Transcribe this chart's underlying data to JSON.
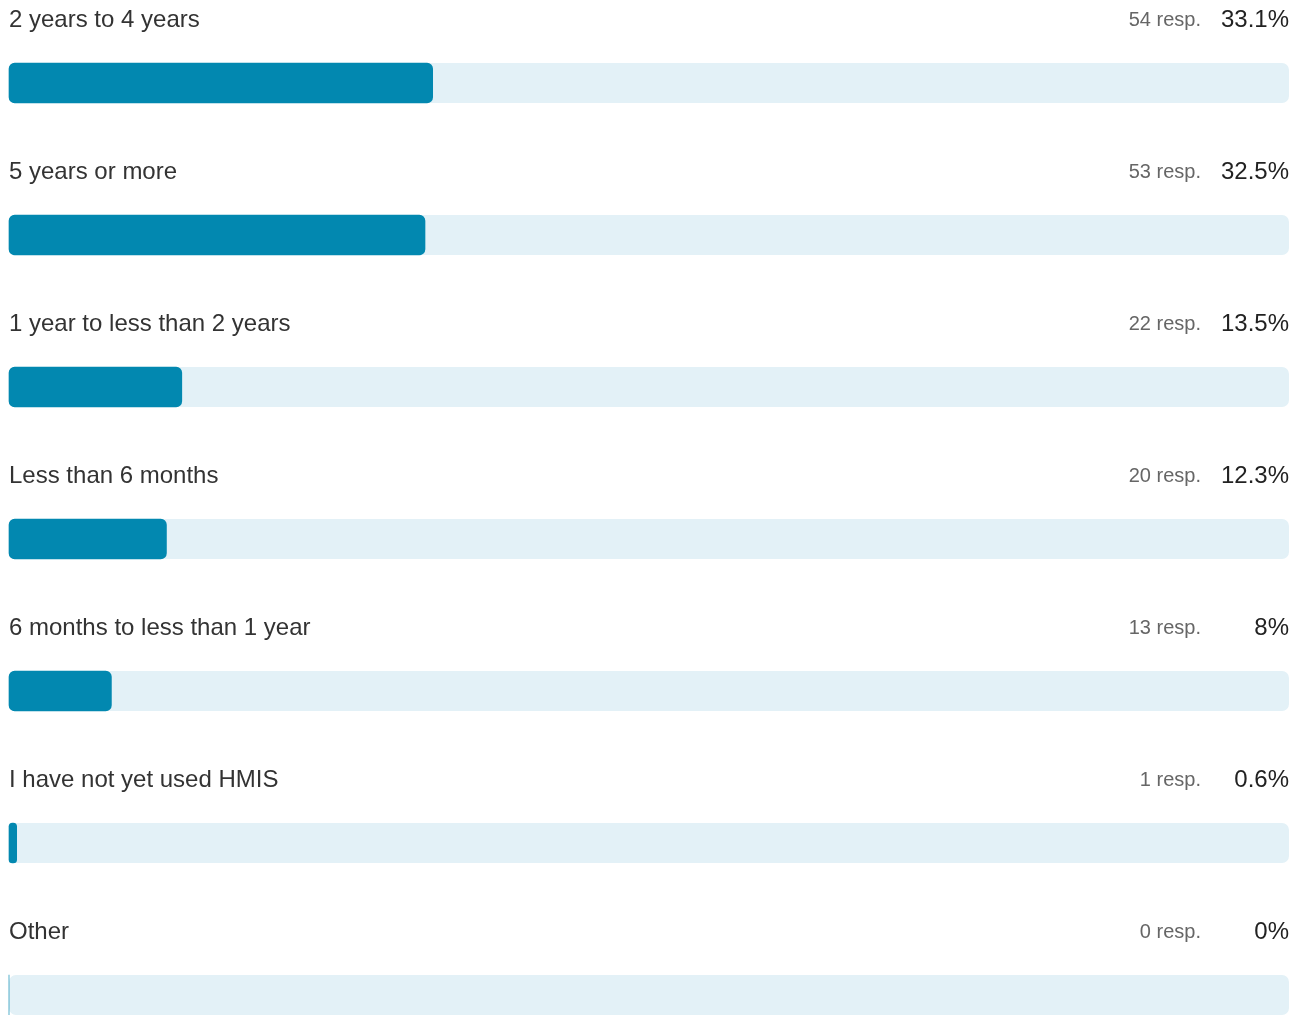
{
  "chart_data": {
    "type": "bar",
    "orientation": "horizontal",
    "categories": [
      "2 years to 4 years",
      "5 years or more",
      "1 year to less than 2 years",
      "Less than 6 months",
      "6 months to less than 1 year",
      "I have not yet used HMIS",
      "Other"
    ],
    "values": [
      33.1,
      32.5,
      13.5,
      12.3,
      8,
      0.6,
      0
    ],
    "color": "#0288b0",
    "xlim": [
      0,
      100
    ],
    "tick_labels": false,
    "value_labels": [
      "33.1%",
      "32.5%",
      "13.5%",
      "12.3%",
      "8%",
      "0.6%",
      "0%"
    ],
    "annotations": [
      "54 resp.",
      "53 resp.",
      "22 resp.",
      "20 resp.",
      "13 resp.",
      "1 resp.",
      "0 resp."
    ]
  }
}
